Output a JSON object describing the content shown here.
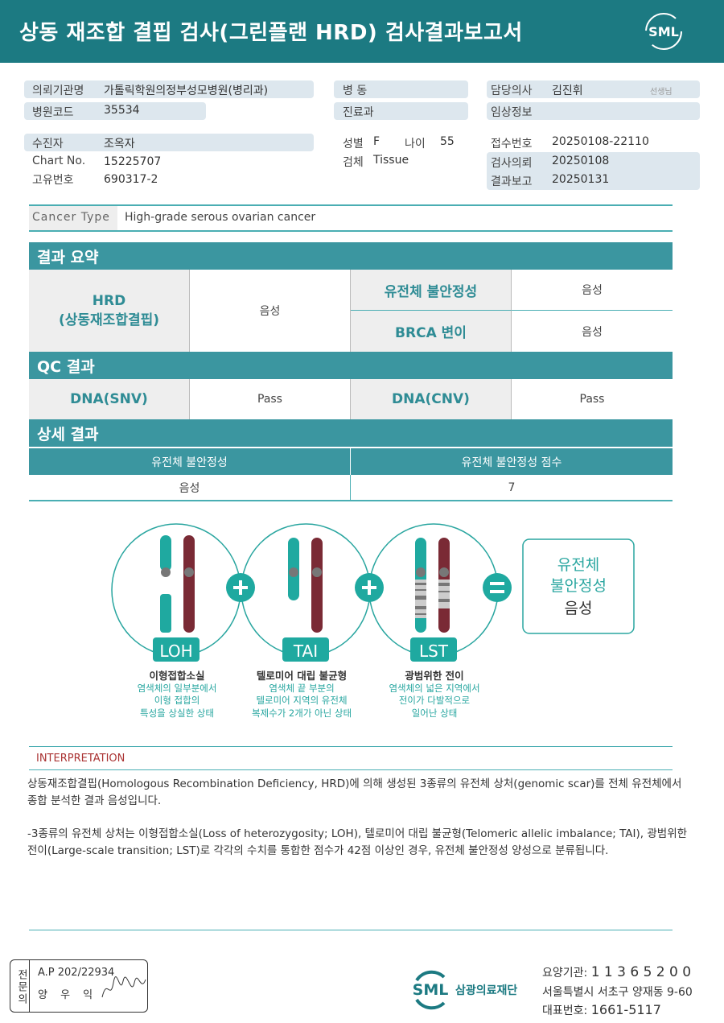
{
  "header": {
    "title": "상동 재조합 결핍 검사(그린플랜 HRD) 검사결과보고서",
    "logo": "SML"
  },
  "info": {
    "institution_label": "의뢰기관명",
    "institution": "가톨릭학원의정부성모병원(병리과)",
    "hospital_code_label": "병원코드",
    "hospital_code": "35534",
    "ward_label": "병 동",
    "ward": "",
    "dept_label": "진료과",
    "dept": "",
    "doctor_label": "담당의사",
    "doctor": "김진휘",
    "doctor_suffix": "선생님",
    "clinical_label": "임상정보",
    "clinical": "",
    "patient_label": "수진자",
    "patient": "조옥자",
    "chart_label": "Chart No.",
    "chart": "15225707",
    "id_label": "고유번호",
    "id": "690317-2",
    "sex_label": "성별",
    "sex": "F",
    "age_label": "나이",
    "age": "55",
    "specimen_label": "검체",
    "specimen": "Tissue",
    "receipt_label": "접수번호",
    "receipt": "20250108-22110",
    "request_label": "검사의뢰",
    "request": "20250108",
    "report_label": "결과보고",
    "report": "20250131"
  },
  "cancer_type": {
    "label": "Cancer Type",
    "value": "High-grade serous ovarian cancer"
  },
  "summary": {
    "title": "결과 요약",
    "hrd_label": "HRD\n(상동재조합결핍)",
    "hrd_value": "음성",
    "gi_label": "유전체 불안정성",
    "gi_value": "음성",
    "brca_label": "BRCA 변이",
    "brca_value": "음성"
  },
  "qc": {
    "title": "QC 결과",
    "snv_label": "DNA(SNV)",
    "snv_value": "Pass",
    "cnv_label": "DNA(CNV)",
    "cnv_value": "Pass"
  },
  "detail": {
    "title": "상세 결과",
    "headers": [
      "유전체 불안정성",
      "유전체 불안정성 점수"
    ],
    "values": [
      "음성",
      "7"
    ]
  },
  "diagram": {
    "items": [
      {
        "tag": "LOH",
        "title": "이형접합소실",
        "desc": [
          "염색체의 일부분에서",
          "이형 접합의",
          "특성을 상실한 상태"
        ]
      },
      {
        "tag": "TAI",
        "title": "텔로미어 대립 불균형",
        "desc": [
          "염색체 끝 부분의",
          "텔로미어 지역의 유전체",
          "복제수가 2개가 아닌 상태"
        ]
      },
      {
        "tag": "LST",
        "title": "광범위한 전이",
        "desc": [
          "염색체의 넓은 지역에서",
          "전이가 다발적으로",
          "일어난 상태"
        ]
      }
    ],
    "result_line1": "유전체",
    "result_line2": "불안정성",
    "result_value": "음성",
    "colors": {
      "teal": "#1fa9a0",
      "maroon": "#7a2a35"
    }
  },
  "interpretation": {
    "title": "INTERPRETATION",
    "p1": "상동재조합결핍(Homologous Recombination Deficiency, HRD)에 의해 생성된 3종류의 유전체 상처(genomic scar)를 전체 유전체에서 종합 분석한 결과 음성입니다.",
    "p2": "-3종류의 유전체 상처는 이형접합소실(Loss of heterozygosity; LOH), 텔로미어 대립 불균형(Telomeric allelic imbalance; TAI), 광범위한 전이(Large-scale transition; LST)로 각각의 수치를 통합한 점수가 42점 이상인 경우, 유전체 불안정성 양성으로 분류됩니다."
  },
  "footer": {
    "stamp_label": "전문의",
    "ap": "A.P 202/22934",
    "name": "양 우 익",
    "org_logo": "SML",
    "org_name": "삼광의료재단",
    "code_label": "요양기관:",
    "code": "1 1 3 6 5 2 0 0",
    "address": "서울특별시 서초구 양재동 9-60",
    "phone_label": "대표번호:",
    "phone": "1661-5117"
  }
}
